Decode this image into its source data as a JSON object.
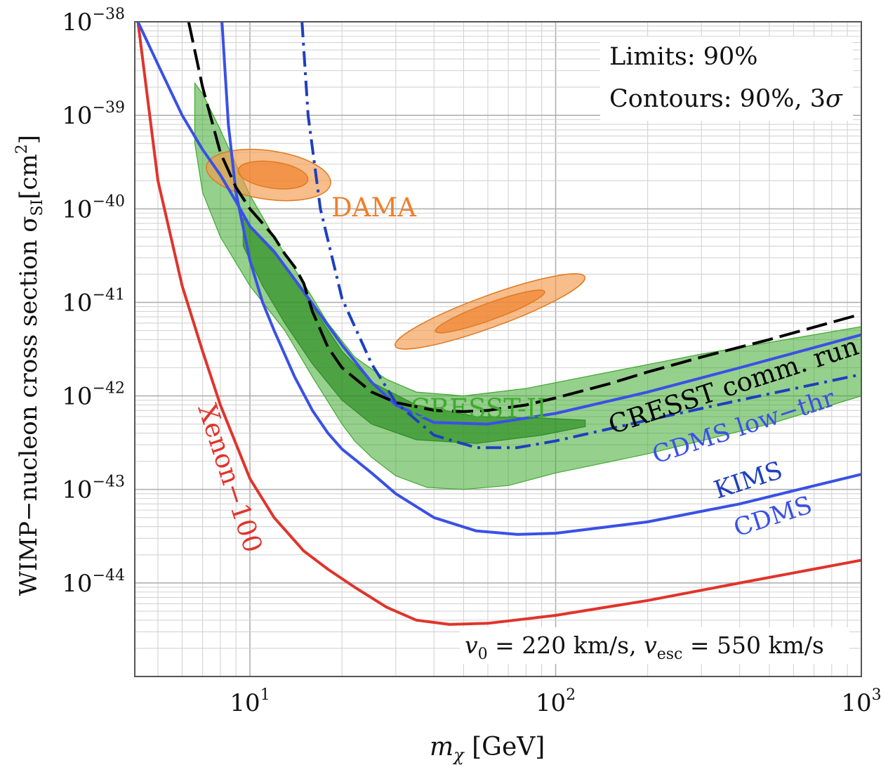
{
  "chart_data": {
    "type": "line",
    "xlabel_main": "m",
    "xlabel_sub": "χ",
    "xlabel_unit": "[GeV]",
    "ylabel_main": "WIMP−nucleon cross section σ",
    "ylabel_sub": "SI",
    "ylabel_unit": "[cm",
    "ylabel_sup": "2",
    "ylabel_close": "]",
    "xscale": "log",
    "yscale": "log",
    "xlim": [
      4.2,
      1000
    ],
    "ylim": [
      1e-45,
      1e-38
    ],
    "grid": true,
    "x_ticks": [
      {
        "value": 10,
        "base": "10",
        "exp": "1"
      },
      {
        "value": 100,
        "base": "10",
        "exp": "2"
      },
      {
        "value": 1000,
        "base": "10",
        "exp": "3"
      }
    ],
    "y_ticks": [
      {
        "value": 1e-38,
        "base": "10",
        "exp": "−38"
      },
      {
        "value": 1e-39,
        "base": "10",
        "exp": "−39"
      },
      {
        "value": 1e-40,
        "base": "10",
        "exp": "−40"
      },
      {
        "value": 1e-41,
        "base": "10",
        "exp": "−41"
      },
      {
        "value": 1e-42,
        "base": "10",
        "exp": "−42"
      },
      {
        "value": 1e-43,
        "base": "10",
        "exp": "−43"
      },
      {
        "value": 1e-44,
        "base": "10",
        "exp": "−44"
      }
    ],
    "annotations": {
      "limits": "Limits: 90%",
      "contours_prefix": "Contours: 90%, 3",
      "contours_sigma": "σ",
      "v0_sym": "v",
      "v0_sub": "0",
      "v0_value": " = 220 km/s, ",
      "vesc_sym": "v",
      "vesc_sub": "esc",
      "vesc_value": " = 550 km/s"
    },
    "series": [
      {
        "name": "Xenon−100",
        "color": "#e0342c",
        "dash": "solid",
        "x": [
          4.3,
          5,
          6,
          7,
          8,
          10,
          12,
          15,
          18,
          22,
          28,
          35,
          45,
          60,
          100,
          200,
          400,
          1000
        ],
        "y": [
          1e-38,
          2e-40,
          1.5e-41,
          3e-42,
          8e-43,
          1.3e-43,
          5e-44,
          2.2e-44,
          1.4e-44,
          9e-45,
          5.5e-45,
          4e-45,
          3.6e-45,
          3.7e-45,
          4.5e-45,
          6.5e-45,
          1e-44,
          1.75e-44
        ]
      },
      {
        "name": "CDMS",
        "color": "#3a50e6",
        "dash": "solid",
        "x": [
          8.1,
          8.5,
          9,
          10,
          11,
          12,
          14,
          16,
          18,
          20,
          25,
          30,
          40,
          55,
          75,
          100,
          200,
          400,
          1000
        ],
        "y": [
          1e-38,
          8e-40,
          1.5e-40,
          2.8e-41,
          1e-41,
          5e-42,
          1.6e-42,
          7e-43,
          4e-43,
          2.7e-43,
          1.5e-43,
          9e-44,
          5e-44,
          3.6e-44,
          3.3e-44,
          3.4e-44,
          4.5e-44,
          7e-44,
          1.45e-43
        ]
      },
      {
        "name": "CDMS low−thr",
        "color": "#3a50e6",
        "dash": "solid",
        "x": [
          4.3,
          5,
          6,
          7,
          8,
          9,
          10,
          12,
          15,
          20,
          25,
          30,
          40,
          60,
          100,
          200,
          400,
          1000
        ],
        "y": [
          1e-38,
          3.5e-39,
          1e-39,
          4.3e-40,
          2.3e-40,
          1.2e-40,
          6.5e-41,
          3.5e-41,
          1.3e-41,
          3.5e-42,
          1.4e-42,
          8e-43,
          5.2e-43,
          5e-43,
          6.5e-43,
          1.1e-42,
          2e-42,
          4.5e-42
        ]
      },
      {
        "name": "KIMS",
        "color": "#1e3fbf",
        "dash": "dashdot",
        "x": [
          14.8,
          15.5,
          17,
          20,
          25,
          30,
          40,
          55,
          75,
          100,
          200,
          400,
          1000
        ],
        "y": [
          1e-38,
          1e-39,
          1e-40,
          1.1e-41,
          2.2e-42,
          8.5e-43,
          3.8e-43,
          2.8e-43,
          2.8e-43,
          3.3e-43,
          5.5e-43,
          9e-43,
          1.7e-42
        ]
      },
      {
        "name": "CRESST comm. run",
        "color": "#000000",
        "dash": "longdash",
        "x": [
          6.3,
          7,
          8,
          9,
          10,
          11,
          12,
          13,
          14,
          15,
          16,
          18,
          20,
          25,
          30,
          40,
          50,
          60,
          80,
          100,
          150,
          200,
          300,
          500,
          1000
        ],
        "y": [
          1e-38,
          2e-39,
          4e-40,
          1.7e-40,
          1e-40,
          7e-41,
          5e-41,
          3.3e-41,
          2.4e-41,
          1.6e-41,
          8e-42,
          3.3e-42,
          2e-42,
          1.1e-42,
          8.5e-43,
          7e-43,
          6.8e-43,
          7e-43,
          8e-43,
          9.5e-43,
          1.35e-42,
          1.8e-42,
          2.6e-42,
          4e-42,
          7.5e-42
        ]
      }
    ],
    "regions": [
      {
        "name": "CRESST-II",
        "color": "#3faa2f",
        "level": "90%",
        "upper_x": [
          6.6,
          7,
          8,
          10,
          12,
          15,
          18,
          22,
          28,
          35,
          50,
          80,
          150,
          300,
          1000
        ],
        "upper_y": [
          2.2e-39,
          1.7e-39,
          7e-40,
          1.4e-40,
          5e-41,
          1.6e-41,
          6e-42,
          2.6e-42,
          1.5e-42,
          1.1e-42,
          1e-42,
          1.2e-42,
          1.8e-42,
          2.8e-42,
          5.5e-42
        ],
        "lower_x": [
          1000,
          500,
          200,
          100,
          70,
          50,
          38,
          30,
          25,
          22,
          20,
          16,
          13,
          10,
          8,
          7,
          6.6
        ],
        "lower_y": [
          1e-42,
          5e-43,
          2.4e-43,
          1.5e-43,
          1.1e-43,
          1e-43,
          1.05e-43,
          1.4e-43,
          2.2e-43,
          3.3e-43,
          5e-43,
          1.6e-42,
          5e-42,
          1.5e-41,
          5e-41,
          1.5e-40,
          5e-40
        ]
      },
      {
        "name": "CRESST-II",
        "color": "#2d8e24",
        "level": "3σ",
        "upper_x": [
          9.5,
          11,
          13,
          16,
          20,
          25,
          35,
          55,
          90,
          125
        ],
        "upper_y": [
          8e-41,
          4.5e-41,
          2.5e-41,
          9e-42,
          3e-42,
          1.4e-42,
          8e-43,
          6e-43,
          5.8e-43,
          5.5e-43
        ],
        "lower_x": [
          125,
          90,
          55,
          35,
          25,
          20,
          16,
          13,
          11,
          9.5
        ],
        "lower_y": [
          4.7e-43,
          3.8e-43,
          3.1e-43,
          3.4e-43,
          5e-43,
          9e-43,
          2.2e-42,
          6e-42,
          1.5e-41,
          4e-41
        ]
      },
      {
        "name": "DAMA",
        "color": "#f39a4d",
        "level": "3σ",
        "center_x": 11.5,
        "center_y": 2.3e-40,
        "ellipses": [
          {
            "cx": 11.5,
            "cy": 2.3e-40,
            "rx_dex": 0.205,
            "ry_dex": 0.26,
            "rot_deg": 8
          }
        ]
      },
      {
        "name": "DAMA",
        "color": "#ef7f2a",
        "level": "90%",
        "ellipses": [
          {
            "cx": 11.9,
            "cy": 2.3e-40,
            "rx_dex": 0.115,
            "ry_dex": 0.14,
            "rot_deg": 8
          }
        ]
      },
      {
        "name": "DAMA",
        "color": "#f39a4d",
        "level": "3σ",
        "ellipses": [
          {
            "cx": 61,
            "cy": 8e-42,
            "rx_dex": 0.33,
            "ry_dex": 0.17,
            "rot_deg": -20
          }
        ]
      },
      {
        "name": "DAMA",
        "color": "#ef7f2a",
        "level": "90%",
        "ellipses": [
          {
            "cx": 61,
            "cy": 8e-42,
            "rx_dex": 0.19,
            "ry_dex": 0.09,
            "rot_deg": -20
          }
        ]
      }
    ],
    "labels": [
      {
        "text": "DAMA",
        "color": "#ef7f2a"
      },
      {
        "text": "CRESST-II",
        "color": "#3faa2f"
      },
      {
        "text": "CRESST comm. run",
        "color": "#000000"
      },
      {
        "text": "CDMS low−thr",
        "color": "#3a50e6"
      },
      {
        "text": "KIMS",
        "color": "#1e3fbf"
      },
      {
        "text": "CDMS",
        "color": "#3a50e6"
      },
      {
        "text": "Xenon−100",
        "color": "#e0342c"
      }
    ]
  }
}
